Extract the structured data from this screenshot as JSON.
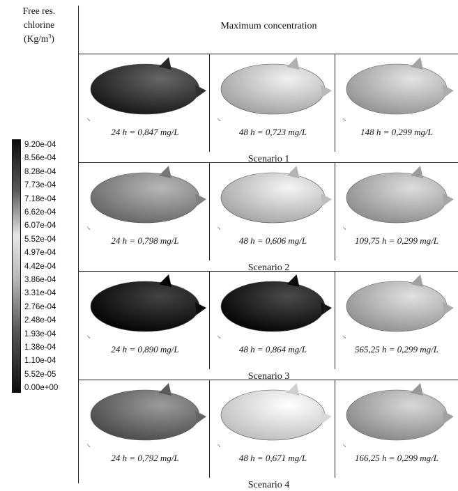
{
  "header": {
    "variable_line1": "Free res.",
    "variable_line2": "chlorine",
    "variable_unit": "(Kg/m",
    "variable_unit_sup": "3",
    "variable_unit_close": ")",
    "column_title": "Maximum concentration"
  },
  "legend": {
    "ticks": [
      "9.20e-04",
      "8.56e-04",
      "8.28e-04",
      "7.73e-04",
      "7.18e-04",
      "6.62e-04",
      "6.07e-04",
      "5.52e-04",
      "4.97e-04",
      "4.42e-04",
      "3.86e-04",
      "3.31e-04",
      "2.76e-04",
      "2.48e-04",
      "1.93e-04",
      "1.38e-04",
      "1.10e-04",
      "5.52e-05",
      "0.00e+00"
    ]
  },
  "scenarios": [
    {
      "name": "Scenario 1",
      "panels": [
        {
          "label": "24 h = 0,847 mg/L",
          "tone": "#3a3a3a"
        },
        {
          "label": "48 h = 0,723 mg/L",
          "tone": "#c4c4c4"
        },
        {
          "label": "148 h = 0,299 mg/L",
          "tone": "#b6b6b6"
        }
      ]
    },
    {
      "name": "Scenario 2",
      "panels": [
        {
          "label": "24 h =  0,798 mg/L",
          "tone": "#8a8a8a"
        },
        {
          "label": "48 h =  0,606 mg/L",
          "tone": "#c8c8c8"
        },
        {
          "label": "109,75 h =  0,299 mg/L",
          "tone": "#b0b0b0"
        }
      ]
    },
    {
      "name": "Scenario 3",
      "panels": [
        {
          "label": "24 h =  0,890 mg/L",
          "tone": "#161616"
        },
        {
          "label": "48 h =  0,864 mg/L",
          "tone": "#1e1e1e"
        },
        {
          "label": "565,25 h =  0,299 mg/L",
          "tone": "#b4b4b4"
        }
      ]
    },
    {
      "name": "Scenario 4",
      "panels": [
        {
          "label": "24 h = 0,792 mg/L",
          "tone": "#6e6e6e"
        },
        {
          "label": "48 h = 0,671 mg/L",
          "tone": "#e2e2e2"
        },
        {
          "label": "166,25 h =  0,299 mg/L",
          "tone": "#ababab"
        }
      ]
    }
  ]
}
